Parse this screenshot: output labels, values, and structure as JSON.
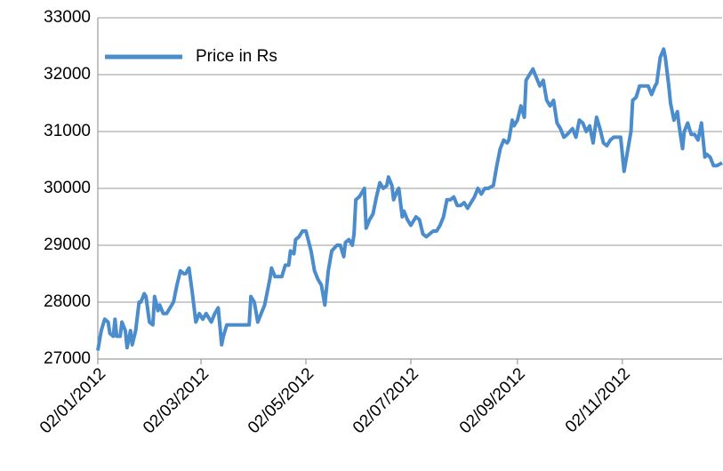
{
  "chart_data": {
    "type": "line",
    "x": [
      "02/01/2012",
      "04/01/2012",
      "06/01/2012",
      "08/01/2012",
      "09/01/2012",
      "11/01/2012",
      "12/01/2012",
      "13/01/2012",
      "15/01/2012",
      "16/01/2012",
      "18/01/2012",
      "19/01/2012",
      "21/01/2012",
      "22/01/2012",
      "24/01/2012",
      "26/01/2012",
      "27/01/2012",
      "29/01/2012",
      "30/01/2012",
      "01/02/2012",
      "03/02/2012",
      "04/02/2012",
      "06/02/2012",
      "07/02/2012",
      "09/02/2012",
      "11/02/2012",
      "13/02/2012",
      "15/02/2012",
      "17/02/2012",
      "19/02/2012",
      "21/02/2012",
      "22/02/2012",
      "24/02/2012",
      "26/02/2012",
      "28/02/2012",
      "01/03/2012",
      "03/03/2012",
      "05/03/2012",
      "08/03/2012",
      "10/03/2012",
      "12/03/2012",
      "14/03/2012",
      "15/03/2012",
      "17/03/2012",
      "21/03/2012",
      "25/03/2012",
      "30/03/2012",
      "31/03/2012",
      "02/04/2012",
      "04/04/2012",
      "06/04/2012",
      "08/04/2012",
      "09/04/2012",
      "11/04/2012",
      "12/04/2012",
      "14/04/2012",
      "16/04/2012",
      "18/04/2012",
      "20/04/2012",
      "22/04/2012",
      "23/04/2012",
      "25/04/2012",
      "26/04/2012",
      "28/04/2012",
      "30/04/2012",
      "02/05/2012",
      "05/05/2012",
      "07/05/2012",
      "09/05/2012",
      "11/05/2012",
      "13/05/2012",
      "15/05/2012",
      "17/05/2012",
      "20/05/2012",
      "22/05/2012",
      "24/05/2012",
      "25/05/2012",
      "27/05/2012",
      "29/05/2012",
      "30/05/2012",
      "31/05/2012",
      "02/06/2012",
      "05/06/2012",
      "06/06/2012",
      "08/06/2012",
      "10/06/2012",
      "12/06/2012",
      "14/06/2012",
      "16/06/2012",
      "18/06/2012",
      "19/06/2012",
      "21/06/2012",
      "22/06/2012",
      "24/06/2012",
      "25/06/2012",
      "27/06/2012",
      "28/06/2012",
      "30/06/2012",
      "02/07/2012",
      "05/07/2012",
      "07/07/2012",
      "09/07/2012",
      "11/07/2012",
      "13/07/2012",
      "15/07/2012",
      "17/07/2012",
      "19/07/2012",
      "21/07/2012",
      "23/07/2012",
      "25/07/2012",
      "27/07/2012",
      "29/07/2012",
      "31/07/2012",
      "02/08/2012",
      "04/08/2012",
      "06/08/2012",
      "08/08/2012",
      "10/08/2012",
      "12/08/2012",
      "14/08/2012",
      "16/08/2012",
      "19/08/2012",
      "21/08/2012",
      "23/08/2012",
      "25/08/2012",
      "27/08/2012",
      "28/08/2012",
      "30/08/2012",
      "31/08/2012",
      "02/09/2012",
      "04/09/2012",
      "06/09/2012",
      "07/09/2012",
      "09/09/2012",
      "11/09/2012",
      "13/09/2012",
      "15/09/2012",
      "17/09/2012",
      "19/09/2012",
      "21/09/2012",
      "23/09/2012",
      "25/09/2012",
      "27/09/2012",
      "29/09/2012",
      "01/10/2012",
      "04/10/2012",
      "06/10/2012",
      "08/10/2012",
      "10/10/2012",
      "12/10/2012",
      "14/10/2012",
      "16/10/2012",
      "18/10/2012",
      "20/10/2012",
      "22/10/2012",
      "24/10/2012",
      "26/10/2012",
      "28/10/2012",
      "30/10/2012",
      "01/11/2012",
      "03/11/2012",
      "05/11/2012",
      "07/11/2012",
      "08/11/2012",
      "10/11/2012",
      "12/11/2012",
      "17/11/2012",
      "19/11/2012",
      "21/11/2012",
      "22/11/2012",
      "24/11/2012",
      "26/11/2012",
      "27/11/2012",
      "29/11/2012",
      "30/11/2012",
      "02/12/2012",
      "04/12/2012",
      "05/12/2012",
      "07/12/2012",
      "08/12/2012",
      "10/12/2012",
      "12/12/2012",
      "14/12/2012",
      "16/12/2012",
      "18/12/2012",
      "20/12/2012",
      "21/12/2012",
      "23/12/2012",
      "25/12/2012",
      "27/12/2012",
      "30/12/2012"
    ],
    "series": [
      {
        "name": "Price in Rs",
        "color": "#4a8ccc",
        "values": [
          27150,
          27500,
          27700,
          27650,
          27450,
          27400,
          27700,
          27400,
          27400,
          27650,
          27500,
          27200,
          27500,
          27250,
          27500,
          28000,
          28000,
          28150,
          28100,
          27650,
          27600,
          28100,
          27850,
          27950,
          27800,
          27800,
          27900,
          28000,
          28300,
          28550,
          28500,
          28500,
          28600,
          28150,
          27650,
          27800,
          27700,
          27800,
          27650,
          27800,
          27900,
          27250,
          27400,
          27600,
          27600,
          27600,
          27600,
          28100,
          28000,
          27650,
          27800,
          27950,
          28100,
          28400,
          28600,
          28450,
          28450,
          28450,
          28650,
          28650,
          28900,
          28850,
          29100,
          29150,
          29250,
          29250,
          28900,
          28550,
          28400,
          28300,
          27950,
          28550,
          28900,
          29000,
          29000,
          28800,
          29050,
          29100,
          29000,
          29200,
          29800,
          29850,
          30000,
          29300,
          29450,
          29550,
          29850,
          30100,
          30000,
          30050,
          30200,
          30050,
          29800,
          29950,
          30000,
          29500,
          29600,
          29450,
          29350,
          29500,
          29450,
          29200,
          29150,
          29200,
          29250,
          29250,
          29350,
          29500,
          29800,
          29800,
          29850,
          29700,
          29700,
          29750,
          29650,
          29750,
          29850,
          30000,
          29900,
          30000,
          30000,
          30050,
          30400,
          30700,
          30850,
          30800,
          30850,
          31200,
          31100,
          31200,
          31450,
          31250,
          31900,
          32000,
          32100,
          31950,
          31800,
          31900,
          31550,
          31450,
          31550,
          31150,
          31050,
          30900,
          30950,
          31050,
          30900,
          31200,
          31150,
          31000,
          31100,
          30800,
          31250,
          31050,
          30800,
          30750,
          30850,
          30900,
          30900,
          30900,
          30300,
          30650,
          31000,
          31550,
          31600,
          31800,
          31800,
          31650,
          31800,
          31850,
          32300,
          32450,
          32300,
          31800,
          31500,
          31200,
          31350,
          31100,
          30700,
          31000,
          31150,
          30950,
          30950,
          30850,
          31150,
          30550,
          30600,
          30550,
          30400,
          30400,
          30450
        ]
      }
    ],
    "xlim": [
      "02/01/2012",
      "30/12/2012"
    ],
    "xticks": [
      "02/01/2012",
      "02/03/2012",
      "02/05/2012",
      "02/07/2012",
      "02/09/2012",
      "02/11/2012"
    ],
    "ylim": [
      27000,
      33000
    ],
    "yticks": [
      27000,
      28000,
      29000,
      30000,
      31000,
      32000,
      33000
    ],
    "grid": true,
    "legend": "upper left"
  }
}
